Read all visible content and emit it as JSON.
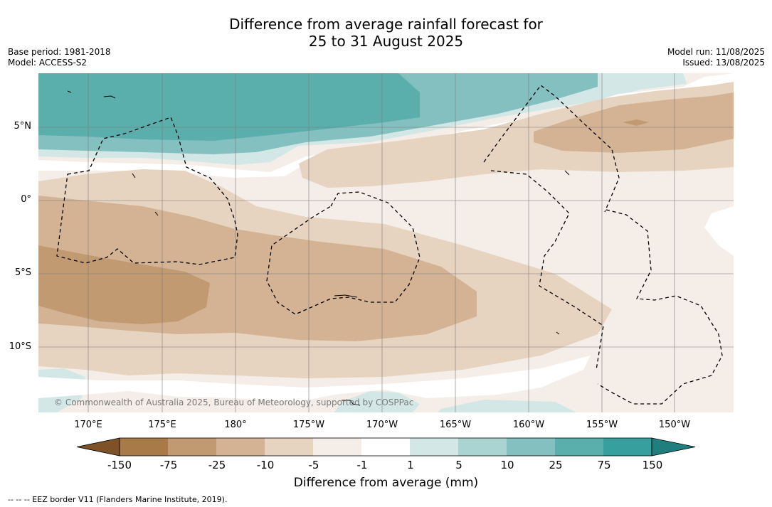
{
  "title_line1": "Difference from average rainfall forecast for",
  "title_line2": "25 to 31 August 2025",
  "base_period": "Base period: 1981-2018",
  "model": "Model: ACCESS-S2",
  "model_run": "Model run: 11/08/2025",
  "issued": "Issued: 13/08/2025",
  "copyright": "© Commonwealth of Australia 2025, Bureau of Meteorology, supported by COSPPac",
  "footnote": "--  --  -- EEZ border V11 (Flanders Marine Institute, 2019).",
  "lon_labels": [
    "170°E",
    "175°E",
    "180°",
    "175°W",
    "170°W",
    "165°W",
    "160°W",
    "155°W",
    "150°W"
  ],
  "lat_labels": [
    "5°N",
    "0°",
    "5°S",
    "10°S"
  ],
  "colorbar": {
    "title": "Difference from average (mm)",
    "ticks": [
      "-150",
      "-75",
      "-25",
      "-10",
      "-5",
      "-1",
      "1",
      "5",
      "10",
      "25",
      "75",
      "150"
    ],
    "colors": [
      "#7e5127",
      "#a87a47",
      "#c19a72",
      "#d3b394",
      "#e6d3c0",
      "#f5ede7",
      "#ffffff",
      "#d3e8e6",
      "#aad4d2",
      "#84c0bf",
      "#5aaeac",
      "#37a09e",
      "#207f7d"
    ],
    "extend_low_color": "#7e5127",
    "extend_high_color": "#207f7d"
  }
}
